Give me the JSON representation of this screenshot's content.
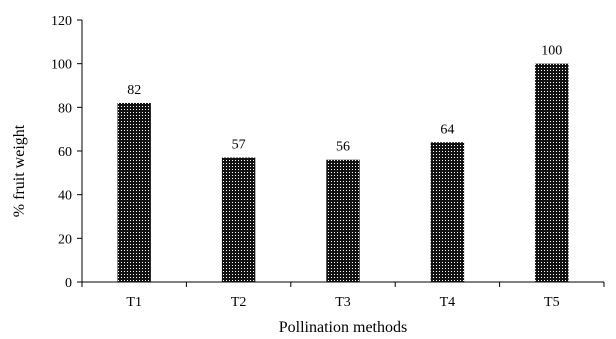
{
  "chart_data": {
    "type": "bar",
    "categories": [
      "T1",
      "T2",
      "T3",
      "T4",
      "T5"
    ],
    "values": [
      82,
      57,
      56,
      64,
      100
    ],
    "data_labels": [
      "82",
      "57",
      "56",
      "64",
      "100"
    ],
    "xlabel": "Pollination methods",
    "ylabel": "% fruit weight",
    "ylim": [
      0,
      120
    ],
    "yticks": [
      0,
      20,
      40,
      60,
      80,
      100,
      120
    ],
    "grid": false,
    "legend": "none",
    "bar_pattern": "dotted",
    "colors": {
      "bar_dark": "#000000",
      "bar_light": "#ffffff",
      "axis": "#000000"
    }
  }
}
